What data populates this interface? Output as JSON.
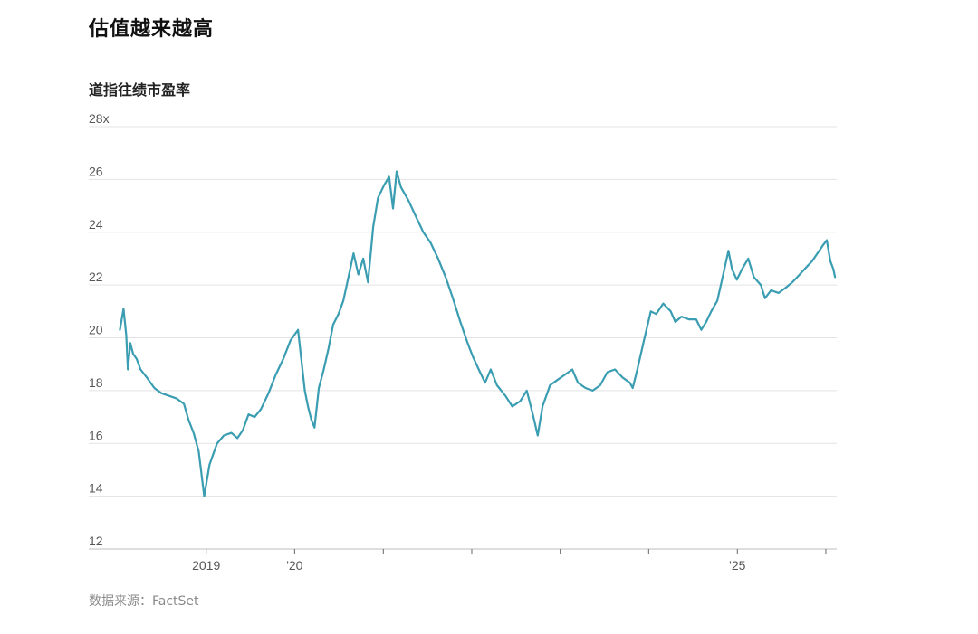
{
  "headline": "估值越来越高",
  "subtitle": "道指往绩市盈率",
  "source": "数据来源：FactSet",
  "chart_data": {
    "type": "line",
    "title": "道指往绩市盈率",
    "xlabel": "",
    "ylabel": "",
    "ylim": [
      12,
      28
    ],
    "y_ticks": [
      {
        "value": 28,
        "label": "28x"
      },
      {
        "value": 26,
        "label": "26"
      },
      {
        "value": 24,
        "label": "24"
      },
      {
        "value": 22,
        "label": "22"
      },
      {
        "value": 20,
        "label": "20"
      },
      {
        "value": 18,
        "label": "18"
      },
      {
        "value": 16,
        "label": "16"
      },
      {
        "value": 14,
        "label": "14"
      },
      {
        "value": 12,
        "label": "12"
      }
    ],
    "xlim": [
      "2018-01-01",
      "2026-02-15"
    ],
    "x_ticks": [
      {
        "value": "2019-01-01",
        "label": "2019"
      },
      {
        "value": "2020-01-01",
        "label": "'20"
      },
      {
        "value": "2021-01-01",
        "label": ""
      },
      {
        "value": "2022-01-01",
        "label": ""
      },
      {
        "value": "2023-01-01",
        "label": ""
      },
      {
        "value": "2024-01-01",
        "label": ""
      },
      {
        "value": "2025-01-01",
        "label": "'25"
      },
      {
        "value": "2026-01-01",
        "label": ""
      }
    ],
    "grid": true,
    "line_color": "#3a9db1",
    "series": [
      {
        "x": [
          "2018-01-10",
          "2018-01-25",
          "2018-02-05",
          "2018-02-12",
          "2018-02-22",
          "2018-03-05",
          "2018-03-20",
          "2018-04-05",
          "2018-05-01",
          "2018-06-01",
          "2018-07-01",
          "2018-08-01",
          "2018-09-01",
          "2018-10-01",
          "2018-10-20",
          "2018-11-10",
          "2018-12-01",
          "2018-12-24",
          "2019-01-15",
          "2019-02-15",
          "2019-03-15",
          "2019-04-15",
          "2019-05-10",
          "2019-06-01",
          "2019-06-25",
          "2019-07-20",
          "2019-08-15",
          "2019-09-15",
          "2019-10-15",
          "2019-11-15",
          "2019-12-15",
          "2020-01-15",
          "2020-02-12",
          "2020-02-25",
          "2020-03-10",
          "2020-03-23",
          "2020-04-10",
          "2020-04-30",
          "2020-05-20",
          "2020-06-08",
          "2020-06-30",
          "2020-07-20",
          "2020-08-10",
          "2020-08-31",
          "2020-09-20",
          "2020-10-10",
          "2020-10-30",
          "2020-11-20",
          "2020-12-10",
          "2021-01-05",
          "2021-01-25",
          "2021-02-10",
          "2021-02-25",
          "2021-03-15",
          "2021-04-15",
          "2021-05-15",
          "2021-06-15",
          "2021-07-15",
          "2021-08-15",
          "2021-09-15",
          "2021-10-15",
          "2021-11-15",
          "2021-12-15",
          "2022-01-05",
          "2022-01-30",
          "2022-02-25",
          "2022-03-20",
          "2022-04-15",
          "2022-05-20",
          "2022-06-17",
          "2022-07-20",
          "2022-08-16",
          "2022-09-10",
          "2022-09-30",
          "2022-10-20",
          "2022-11-20",
          "2022-12-20",
          "2023-01-20",
          "2023-02-20",
          "2023-03-15",
          "2023-04-15",
          "2023-05-15",
          "2023-06-15",
          "2023-07-15",
          "2023-08-15",
          "2023-09-15",
          "2023-10-15",
          "2023-10-27",
          "2023-11-15",
          "2023-12-15",
          "2024-01-10",
          "2024-02-01",
          "2024-03-01",
          "2024-04-01",
          "2024-04-20",
          "2024-05-15",
          "2024-06-15",
          "2024-07-15",
          "2024-08-05",
          "2024-08-25",
          "2024-09-15",
          "2024-10-10",
          "2024-11-06",
          "2024-11-25",
          "2024-12-10",
          "2024-12-30",
          "2025-01-20",
          "2025-02-15",
          "2025-03-10",
          "2025-04-08",
          "2025-04-25",
          "2025-05-20",
          "2025-06-20",
          "2025-07-20",
          "2025-08-15",
          "2025-09-15",
          "2025-10-15",
          "2025-11-05",
          "2025-11-20",
          "2025-12-05",
          "2025-12-20",
          "2026-01-05",
          "2026-01-20",
          "2026-02-01",
          "2026-02-08"
        ],
        "values": [
          20.3,
          21.1,
          20.1,
          18.8,
          19.8,
          19.4,
          19.2,
          18.8,
          18.5,
          18.1,
          17.9,
          17.8,
          17.7,
          17.5,
          16.9,
          16.4,
          15.7,
          14.0,
          15.2,
          16.0,
          16.3,
          16.4,
          16.2,
          16.5,
          17.1,
          17.0,
          17.3,
          17.9,
          18.6,
          19.2,
          19.9,
          20.3,
          18.0,
          17.4,
          16.9,
          16.6,
          18.1,
          18.8,
          19.6,
          20.5,
          20.9,
          21.4,
          22.3,
          23.2,
          22.4,
          23.0,
          22.1,
          24.2,
          25.3,
          25.8,
          26.1,
          24.9,
          26.3,
          25.7,
          25.2,
          24.6,
          24.0,
          23.6,
          23.0,
          22.3,
          21.5,
          20.6,
          19.8,
          19.3,
          18.8,
          18.3,
          18.8,
          18.2,
          17.8,
          17.4,
          17.6,
          18.0,
          17.1,
          16.3,
          17.4,
          18.2,
          18.4,
          18.6,
          18.8,
          18.3,
          18.1,
          18.0,
          18.2,
          18.7,
          18.8,
          18.5,
          18.3,
          18.1,
          18.8,
          20.0,
          21.0,
          20.9,
          21.3,
          21.0,
          20.6,
          20.8,
          20.7,
          20.7,
          20.3,
          20.6,
          21.0,
          21.4,
          22.5,
          23.3,
          22.6,
          22.2,
          22.6,
          23.0,
          22.3,
          22.0,
          21.5,
          21.8,
          21.7,
          21.9,
          22.1,
          22.4,
          22.7,
          22.9,
          23.1,
          23.3,
          23.5,
          23.7,
          22.9,
          22.6,
          22.3
        ]
      }
    ]
  }
}
